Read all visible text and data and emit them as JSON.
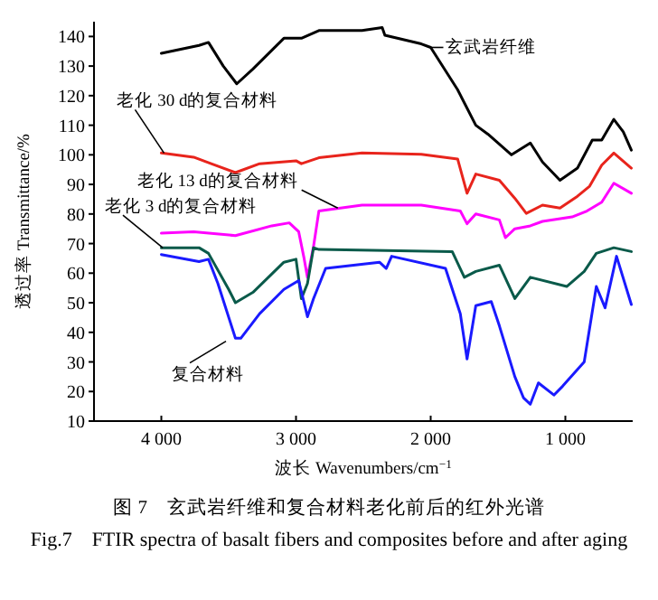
{
  "chart_data": {
    "type": "line",
    "title": "图 7　玄武岩纤维和复合材料老化前后的红外光谱",
    "subtitle": "Fig.7　FTIR spectra of basalt fibers and composites before and after aging",
    "xlabel": "波长 Wavenumbers/cm$^{−1}$",
    "ylabel": "透过率 Transmittance/%",
    "xlim": [
      4500,
      500
    ],
    "ylim": [
      10,
      145
    ],
    "xticks": [
      {
        "value": 4000,
        "label": "4 000"
      },
      {
        "value": 3000,
        "label": "3 000"
      },
      {
        "value": 2000,
        "label": "2 000"
      },
      {
        "value": 1000,
        "label": "1 000"
      }
    ],
    "yticks": [
      10,
      20,
      30,
      40,
      50,
      60,
      70,
      80,
      90,
      100,
      110,
      120,
      130,
      140
    ],
    "grid": false,
    "series": [
      {
        "color": "#000000",
        "x": [
          4000,
          3720,
          3650,
          3540,
          3440,
          3320,
          3090,
          2960,
          2830,
          2510,
          2360,
          2340,
          2070,
          2000,
          1800,
          1665,
          1575,
          1400,
          1260,
          1170,
          1040,
          910,
          800,
          730,
          640,
          570,
          510
        ],
        "values": [
          134.3,
          137,
          138,
          130,
          124,
          129,
          139.4,
          139.4,
          142,
          142,
          143,
          140.4,
          137.5,
          136.3,
          122,
          110,
          107,
          100,
          104,
          97.6,
          91.4,
          95.5,
          105,
          105,
          112,
          107.8,
          101.6
        ]
      },
      {
        "color": "#e8241c",
        "x": [
          4000,
          3760,
          3630,
          3450,
          3270,
          3000,
          2960,
          2830,
          2510,
          2070,
          1800,
          1730,
          1665,
          1490,
          1375,
          1290,
          1170,
          1040,
          910,
          820,
          730,
          640,
          510
        ],
        "values": [
          100.6,
          99.2,
          97,
          94,
          97,
          98,
          97,
          99,
          100.6,
          100.2,
          98.6,
          87,
          93.5,
          91.4,
          85.3,
          80.2,
          83,
          82,
          86,
          89.4,
          96.5,
          100.6,
          95.5
        ]
      },
      {
        "color": "#ff00ff",
        "x": [
          4000,
          3760,
          3450,
          3180,
          3050,
          2980,
          2940,
          2915,
          2870,
          2830,
          2510,
          2070,
          1780,
          1730,
          1665,
          1490,
          1445,
          1375,
          1260,
          1170,
          950,
          840,
          730,
          640,
          510
        ],
        "values": [
          73.5,
          74,
          72.7,
          76,
          77,
          74,
          65,
          58.6,
          69,
          81,
          83,
          83,
          81,
          76.7,
          80,
          78,
          72,
          75,
          76,
          77.5,
          79,
          81,
          84,
          90.4,
          87
        ]
      },
      {
        "color": "#0a5a4a",
        "x": [
          4000,
          3720,
          3650,
          3500,
          3450,
          3320,
          3090,
          3000,
          2960,
          2915,
          2870,
          2830,
          1840,
          1750,
          1665,
          1490,
          1375,
          1260,
          990,
          860,
          770,
          640,
          510
        ],
        "values": [
          68.6,
          68.6,
          66.7,
          54.5,
          50,
          53.5,
          63.7,
          64.7,
          51.4,
          56.5,
          68.6,
          68,
          67.3,
          58.6,
          60.6,
          62.7,
          51.4,
          58.6,
          55.5,
          60.6,
          66.7,
          68.6,
          67.3
        ]
      },
      {
        "color": "#1a1aff",
        "x": [
          4000,
          3720,
          3650,
          3580,
          3450,
          3410,
          3270,
          3090,
          2980,
          2915,
          2870,
          2780,
          2380,
          2330,
          2290,
          1890,
          1780,
          1730,
          1665,
          1550,
          1490,
          1375,
          1310,
          1260,
          1200,
          1085,
          1020,
          860,
          770,
          705,
          620,
          510
        ],
        "values": [
          66.3,
          63.9,
          64.7,
          56.5,
          38,
          38,
          46.3,
          54.5,
          57.5,
          45.3,
          51.4,
          61.6,
          63.7,
          61.6,
          65.7,
          61.6,
          46.3,
          31,
          49,
          50.4,
          42.2,
          25,
          17.8,
          15.7,
          22.9,
          18.8,
          21.8,
          30,
          55.5,
          48.3,
          65.7,
          49.4
        ]
      }
    ],
    "annotations": [
      {
        "text": "玄武岩纤维",
        "x": 2000,
        "y": 136.3
      },
      {
        "text": "老化 30 d的复合材料",
        "x": 3980,
        "y": 100.6
      },
      {
        "text": "老化 13 d的复合材料",
        "x": 2690,
        "y": 82
      },
      {
        "text": "老化 3 d的复合材料",
        "x": 3990,
        "y": 68.6
      },
      {
        "text": "复合材料",
        "x": 3520,
        "y": 37
      }
    ]
  }
}
